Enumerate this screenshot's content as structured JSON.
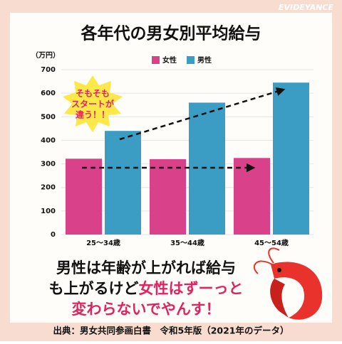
{
  "watermark": "EVIDEYANCE",
  "chart_data": {
    "type": "bar",
    "title": "各年代の男女別平均給与",
    "y_label": "（万円）",
    "categories": [
      "25～34歳",
      "35～44歳",
      "45～54歳"
    ],
    "series": [
      {
        "name": "女性",
        "color": "#d9428a",
        "values": [
          322,
          320,
          325
        ]
      },
      {
        "name": "男性",
        "color": "#3b9cc4",
        "values": [
          440,
          560,
          645
        ]
      }
    ],
    "ylim": [
      0,
      700
    ],
    "yticks": [
      0,
      100,
      200,
      300,
      400,
      500,
      600,
      700
    ],
    "grid": true,
    "annotation": [
      "そもそも",
      "スタートが",
      "違う！！"
    ]
  },
  "caption": [
    [
      {
        "text": "男性は年齢が上がれば給与",
        "color": "#111111"
      }
    ],
    [
      {
        "text": "も上がるけど",
        "color": "#111111"
      },
      {
        "text": "女性はずーっと",
        "color": "#e0245e"
      }
    ],
    [
      {
        "text": "変わらないでやんす！",
        "color": "#e0245e"
      }
    ]
  ],
  "source": "出典：男女共同参画白書　令和5年版（2021年のデータ）"
}
